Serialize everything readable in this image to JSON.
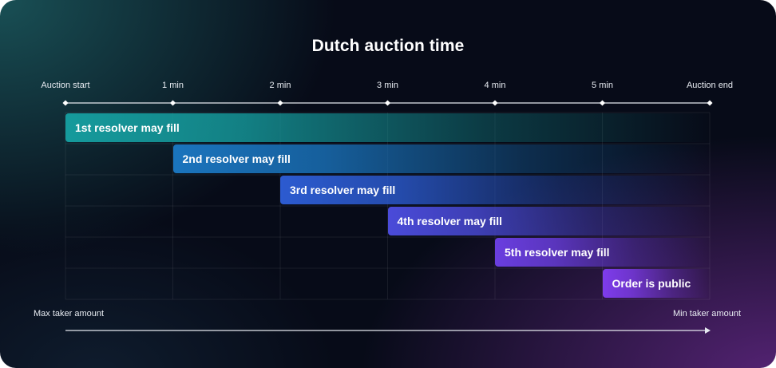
{
  "title": "Dutch auction time",
  "timeline": {
    "ticks": [
      "Auction start",
      "1 min",
      "2 min",
      "3 min",
      "4 min",
      "5 min",
      "Auction end"
    ]
  },
  "chart_data": {
    "type": "gantt",
    "x_unit": "min",
    "x_range": [
      0,
      6
    ],
    "bars": [
      {
        "label": "1st resolver may fill",
        "start": 0,
        "end": 6,
        "color": "#159a9c"
      },
      {
        "label": "2nd resolver may fill",
        "start": 1,
        "end": 6,
        "color": "#1a74bd"
      },
      {
        "label": "3rd resolver may fill",
        "start": 2,
        "end": 6,
        "color": "#2c5bd0"
      },
      {
        "label": "4th resolver may fill",
        "start": 3,
        "end": 6,
        "color": "#4a4bd9"
      },
      {
        "label": "5th resolver may fill",
        "start": 4,
        "end": 6,
        "color": "#6a3ee0"
      },
      {
        "label": "Order is public",
        "start": 5,
        "end": 6,
        "color": "#7e3cec"
      }
    ]
  },
  "amount_axis": {
    "left_label": "Max taker amount",
    "right_label": "Min taker amount"
  }
}
